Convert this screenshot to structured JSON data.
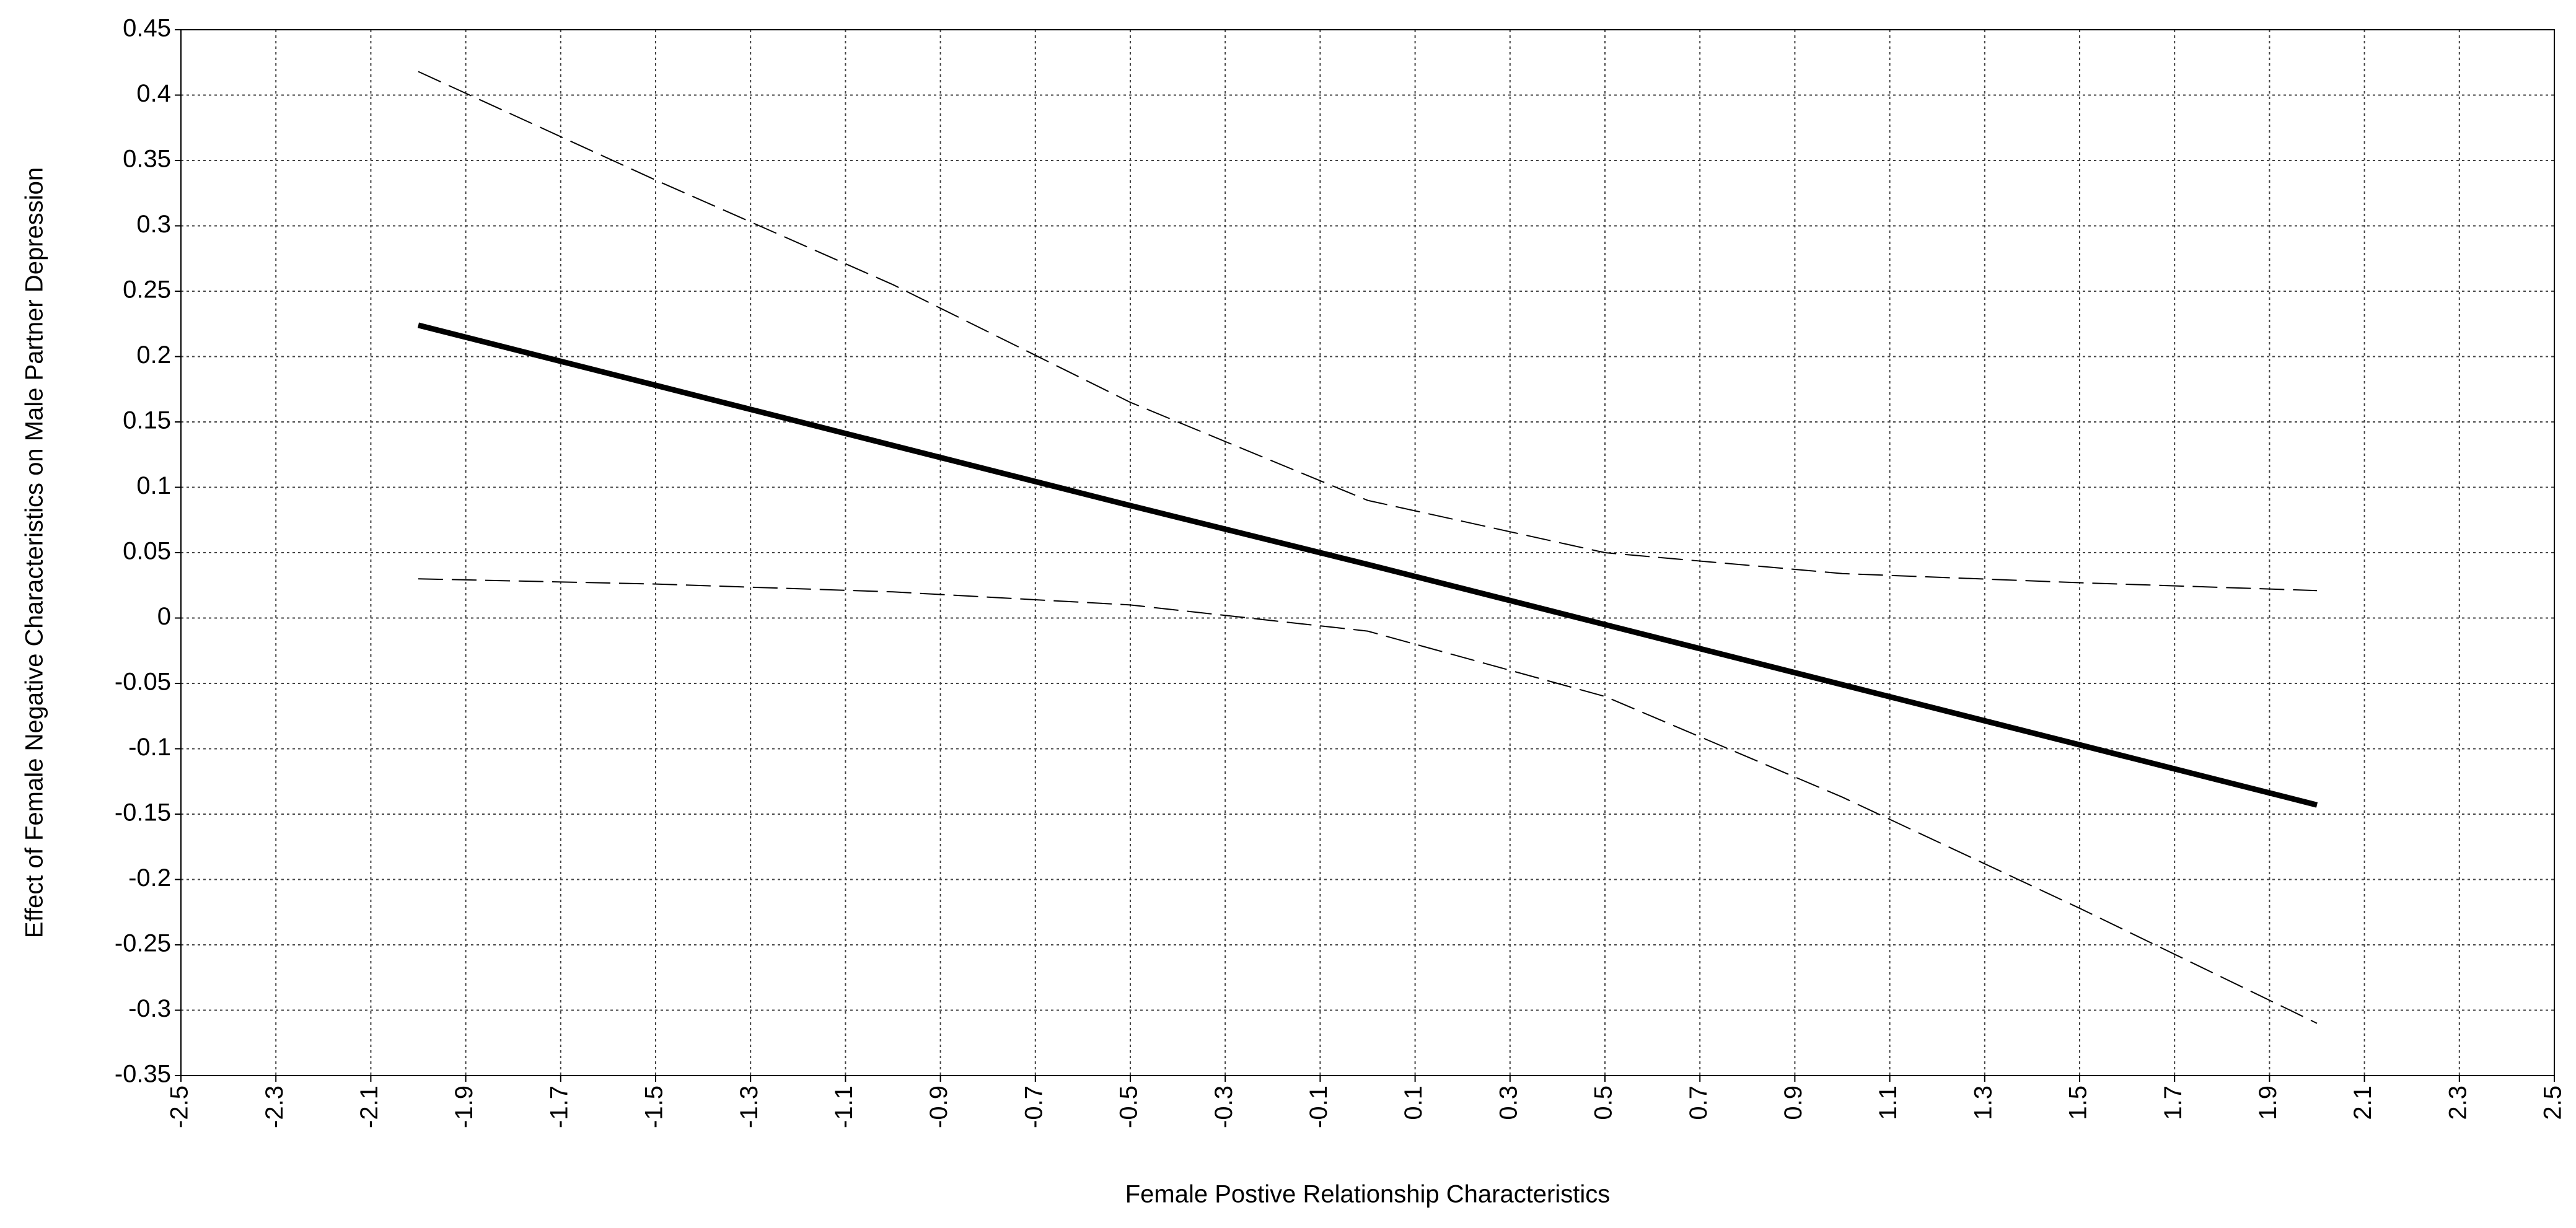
{
  "chart_data": {
    "type": "line",
    "x_label": "Female Postive Relationship Characteristics",
    "y_label": "Effect of Female Negative Characteristics on Male Partner Depression",
    "x": [
      -2,
      -1.5,
      -1,
      -0.5,
      0,
      0.5,
      1,
      1.5,
      2
    ],
    "series": [
      {
        "color": "#000000",
        "line_width": 9,
        "dash": "solid",
        "values": [
          0.224,
          0.178,
          0.132,
          0.086,
          0.041,
          -0.005,
          -0.051,
          -0.097,
          -0.143
        ]
      },
      {
        "color": "#000000",
        "line_width": 2,
        "dash": "dashed",
        "values": [
          0.418,
          0.335,
          0.255,
          0.165,
          0.09,
          0.05,
          0.034,
          0.027,
          0.021
        ]
      },
      {
        "color": "#000000",
        "line_width": 2,
        "dash": "dashed",
        "values": [
          0.03,
          0.026,
          0.02,
          0.01,
          -0.01,
          -0.06,
          -0.137,
          -0.222,
          -0.31
        ]
      }
    ],
    "xlim": [
      -2.5,
      2.5
    ],
    "xticks": [
      -2.5,
      -2.3,
      -2.1,
      -1.9,
      -1.7,
      -1.5,
      -1.3,
      -1.1,
      -0.9,
      -0.7,
      -0.5,
      -0.3,
      -0.1,
      0.1,
      0.3,
      0.5,
      0.7,
      0.9,
      1.1,
      1.3,
      1.5,
      1.7,
      1.9,
      2.1,
      2.3,
      2.5
    ],
    "ylim": [
      -0.35,
      0.45
    ],
    "yticks": [
      -0.35,
      -0.3,
      -0.25,
      -0.2,
      -0.15,
      -0.1,
      -0.05,
      0,
      0.05,
      0.1,
      0.15,
      0.2,
      0.25,
      0.3,
      0.35,
      0.4,
      0.45
    ],
    "grid": true
  }
}
